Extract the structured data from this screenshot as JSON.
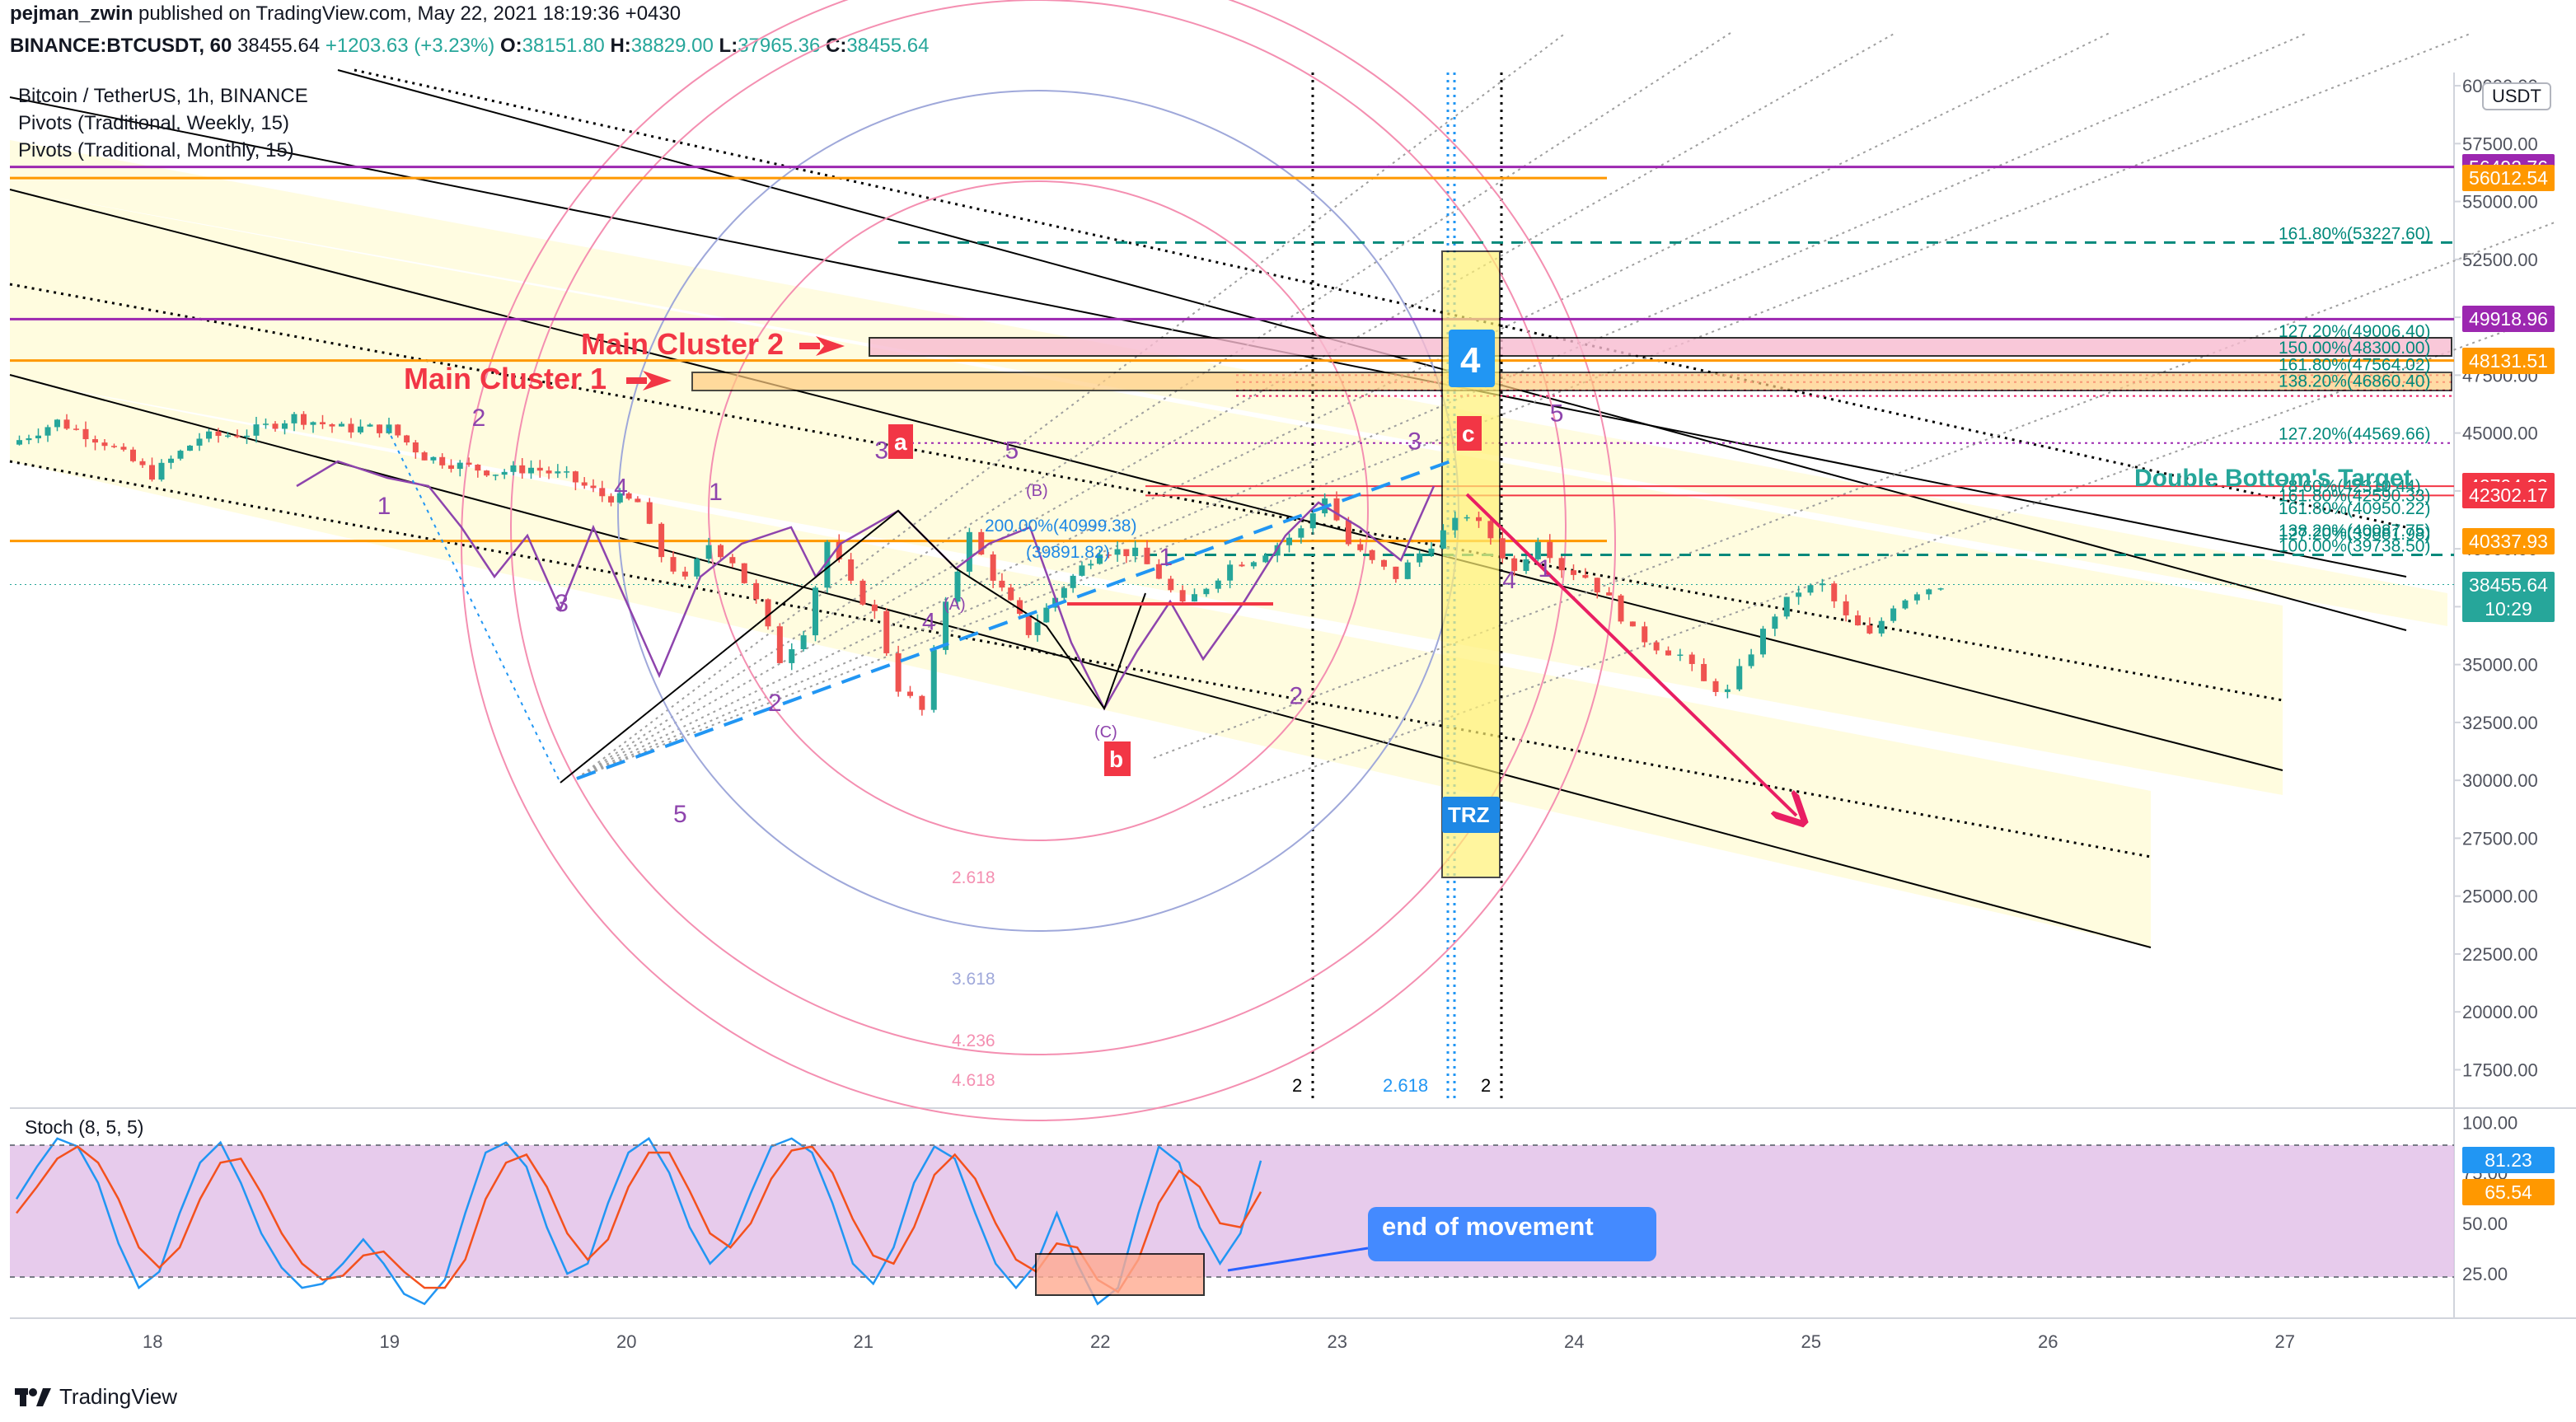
{
  "header": {
    "author": "pejman_zwin",
    "published_text": "published on TradingView.com, May 22, 2021 18:19:36 +0430",
    "symbol": "BINANCE:BTCUSDT, 60",
    "last": "38455.64",
    "change": "+1203.63 (+3.23%)",
    "o_label": "O:",
    "o": "38151.80",
    "h_label": "H:",
    "h": "38829.00",
    "l_label": "L:",
    "l": "37965.36",
    "c_label": "C:",
    "c": "38455.64"
  },
  "legend": {
    "series": "Bitcoin / TetherUS, 1h, BINANCE",
    "pivots_weekly": "Pivots (Traditional, Weekly, 15)",
    "pivots_monthly": "Pivots (Traditional, Monthly, 15)"
  },
  "currency_button": "USDT",
  "colors": {
    "purple": "#9c27b0",
    "orange": "#ff9800",
    "red": "#f23645",
    "green_text": "#26a69a",
    "blue": "#2196f3",
    "stoch_band": "#e1bee7",
    "wave_label": "#8e44ad",
    "channel_fill": "#fff9c4"
  },
  "price_tags": [
    {
      "text": "56492.76",
      "color": "#9c27b0",
      "price": 56492.76
    },
    {
      "text": "56012.54",
      "color": "#ff9800",
      "price": 56012.54
    },
    {
      "text": "49918.96",
      "color": "#9c27b0",
      "price": 49918.96
    },
    {
      "text": "48131.51",
      "color": "#ff9800",
      "price": 48131.51
    },
    {
      "text": "42704.39",
      "color": "#f23645",
      "price": 42704.39
    },
    {
      "text": "42302.17",
      "color": "#f23645",
      "price": 42302.17
    },
    {
      "text": "40337.93",
      "color": "#ff9800",
      "price": 40337.93
    },
    {
      "text": "38455.64",
      "color": "#26a69a",
      "price": 38455.64
    },
    {
      "text": "10:29",
      "color": "#26a69a",
      "price": 37400
    }
  ],
  "stoch_tags": [
    {
      "text": "81.23",
      "color": "#2196f3",
      "value": 81.23
    },
    {
      "text": "65.54",
      "color": "#ff9800",
      "value": 65.54
    }
  ],
  "annotations": {
    "main_cluster_2": "Main Cluster 2",
    "main_cluster_1": "Main Cluster 1",
    "double_bottom_target": "Double Bottom's Target",
    "trz": "TRZ",
    "wave4_box": "4",
    "end_of_movement": "end of movement",
    "label_a": "a",
    "label_b": "b",
    "label_c": "c",
    "fib_200": "200.00%(40999.38)",
    "fib_39891": "(39891.82)",
    "wave_A": "(A)",
    "wave_B": "(B)",
    "wave_C": "(C)",
    "arc_2618": "2.618",
    "arc_3618": "3.618",
    "arc_4236": "4.236",
    "arc_4618": "4.618",
    "time_2618": "2.618",
    "time_2a": "2",
    "time_2b": "2"
  },
  "fib_levels": [
    {
      "text": "161.80%(53227.60)",
      "price": 53227.6
    },
    {
      "text": "127.20%(49006.40)",
      "price": 49006.4
    },
    {
      "text": "150.00%(48300.00)",
      "price": 48300.0
    },
    {
      "text": "161.80%(47564.02)",
      "price": 47564.02
    },
    {
      "text": "138.20%(46860.40)",
      "price": 46860.4
    },
    {
      "text": "127.20%(44569.66)",
      "price": 44569.66
    },
    {
      "text": "78.60%(42310.44)",
      "price": 42310.44
    },
    {
      "text": "161.80%(42590.33)",
      "price": 41900
    },
    {
      "text": "161.80%(40950.22)",
      "price": 41350
    },
    {
      "text": "138.20%(40087.75)",
      "price": 40400
    },
    {
      "text": "127.20%(39881.98)",
      "price": 40250
    },
    {
      "text": "100.00%(39738.50)",
      "price": 39738.5
    }
  ],
  "wave_labels": [
    {
      "text": "1",
      "x": 1.55,
      "price": 41500
    },
    {
      "text": "2",
      "x": 1.95,
      "price": 45300
    },
    {
      "text": "3",
      "x": 2.3,
      "price": 37300
    },
    {
      "text": "4",
      "x": 2.55,
      "price": 42300
    },
    {
      "text": "5",
      "x": 2.8,
      "price": 28200
    },
    {
      "text": "1",
      "x": 2.95,
      "price": 42100
    },
    {
      "text": "2",
      "x": 3.2,
      "price": 33000
    },
    {
      "text": "3",
      "x": 3.65,
      "price": 43900
    },
    {
      "text": "4",
      "x": 3.85,
      "price": 36500
    },
    {
      "text": "5",
      "x": 4.2,
      "price": 43900
    },
    {
      "text": "1",
      "x": 4.85,
      "price": 39300
    },
    {
      "text": "2",
      "x": 5.4,
      "price": 33300
    },
    {
      "text": "3",
      "x": 5.9,
      "price": 44300
    },
    {
      "text": "4",
      "x": 6.3,
      "price": 38300
    },
    {
      "text": "5",
      "x": 6.5,
      "price": 45500
    },
    {
      "text": "1",
      "x": 6.45,
      "price": 38800
    }
  ],
  "stoch": {
    "title": "Stoch (8, 5, 5)",
    "ticks": [
      "100.00",
      "75.00",
      "50.00",
      "25.00"
    ],
    "upper_band": 80,
    "lower_band": 20,
    "k": [
      62,
      78,
      92,
      88,
      70,
      40,
      18,
      26,
      55,
      80,
      90,
      70,
      45,
      28,
      18,
      20,
      30,
      42,
      30,
      15,
      10,
      22,
      55,
      85,
      90,
      78,
      48,
      25,
      30,
      60,
      85,
      92,
      75,
      48,
      30,
      40,
      65,
      88,
      92,
      85,
      60,
      30,
      20,
      38,
      70,
      88,
      82,
      55,
      30,
      18,
      30,
      55,
      30,
      10,
      18,
      55,
      88,
      80,
      48,
      30,
      45,
      81
    ],
    "d": [
      55,
      68,
      82,
      88,
      80,
      62,
      38,
      28,
      38,
      62,
      80,
      82,
      65,
      45,
      30,
      22,
      24,
      34,
      36,
      26,
      18,
      18,
      32,
      62,
      80,
      84,
      68,
      45,
      32,
      42,
      68,
      85,
      85,
      66,
      45,
      38,
      50,
      72,
      86,
      88,
      75,
      52,
      34,
      30,
      48,
      74,
      84,
      72,
      50,
      32,
      26,
      40,
      38,
      22,
      16,
      32,
      60,
      76,
      68,
      50,
      48,
      65.54
    ]
  },
  "chart_data": {
    "type": "candlestick",
    "title": "Bitcoin / TetherUS, 1h, BINANCE",
    "x_ticks": [
      "18",
      "19",
      "20",
      "21",
      "22",
      "23",
      "24",
      "25",
      "26",
      "27"
    ],
    "y_ticks": [
      "60000.00",
      "57500.00",
      "55000.00",
      "52500.00",
      "50000.00",
      "47500.00",
      "45000.00",
      "42500.00",
      "40000.00",
      "37500.00",
      "35000.00",
      "32500.00",
      "30000.00",
      "27500.00",
      "25000.00",
      "22500.00",
      "20000.00",
      "17500.00"
    ],
    "y_range": [
      16200,
      60500
    ],
    "close_path": [
      {
        "d": 0.0,
        "p": 44500
      },
      {
        "d": 0.2,
        "p": 45500
      },
      {
        "d": 0.4,
        "p": 44600
      },
      {
        "d": 0.6,
        "p": 43200
      },
      {
        "d": 0.8,
        "p": 44800
      },
      {
        "d": 1.0,
        "p": 45000
      },
      {
        "d": 1.2,
        "p": 45700
      },
      {
        "d": 1.4,
        "p": 45200
      },
      {
        "d": 1.6,
        "p": 45200
      },
      {
        "d": 1.75,
        "p": 44000
      },
      {
        "d": 1.9,
        "p": 43600
      },
      {
        "d": 2.05,
        "p": 43300
      },
      {
        "d": 2.2,
        "p": 43500
      },
      {
        "d": 2.35,
        "p": 43100
      },
      {
        "d": 2.5,
        "p": 42300
      },
      {
        "d": 2.65,
        "p": 42000
      },
      {
        "d": 2.75,
        "p": 39700
      },
      {
        "d": 2.85,
        "p": 38600
      },
      {
        "d": 2.95,
        "p": 40200
      },
      {
        "d": 3.05,
        "p": 39500
      },
      {
        "d": 3.15,
        "p": 37700
      },
      {
        "d": 3.25,
        "p": 35200
      },
      {
        "d": 3.35,
        "p": 36500
      },
      {
        "d": 3.45,
        "p": 40300
      },
      {
        "d": 3.55,
        "p": 38400
      },
      {
        "d": 3.65,
        "p": 37200
      },
      {
        "d": 3.75,
        "p": 34000
      },
      {
        "d": 3.85,
        "p": 33000
      },
      {
        "d": 3.95,
        "p": 37800
      },
      {
        "d": 4.05,
        "p": 40600
      },
      {
        "d": 4.15,
        "p": 38800
      },
      {
        "d": 4.3,
        "p": 36400
      },
      {
        "d": 4.45,
        "p": 38400
      },
      {
        "d": 4.6,
        "p": 40000
      },
      {
        "d": 4.75,
        "p": 39800
      },
      {
        "d": 4.85,
        "p": 38800
      },
      {
        "d": 4.95,
        "p": 37500
      },
      {
        "d": 5.05,
        "p": 38400
      },
      {
        "d": 5.15,
        "p": 39300
      },
      {
        "d": 5.25,
        "p": 39600
      },
      {
        "d": 5.35,
        "p": 40200
      },
      {
        "d": 5.45,
        "p": 40800
      },
      {
        "d": 5.55,
        "p": 42300
      },
      {
        "d": 5.65,
        "p": 40200
      },
      {
        "d": 5.75,
        "p": 39400
      },
      {
        "d": 5.85,
        "p": 38800
      },
      {
        "d": 5.95,
        "p": 39800
      },
      {
        "d": 6.05,
        "p": 40700
      },
      {
        "d": 6.15,
        "p": 41500
      },
      {
        "d": 6.25,
        "p": 40500
      },
      {
        "d": 6.35,
        "p": 39000
      },
      {
        "d": 6.45,
        "p": 40500
      },
      {
        "d": 6.55,
        "p": 39200
      },
      {
        "d": 6.65,
        "p": 38800
      },
      {
        "d": 6.75,
        "p": 37800
      },
      {
        "d": 6.85,
        "p": 36400
      },
      {
        "d": 6.95,
        "p": 35800
      },
      {
        "d": 7.05,
        "p": 35400
      },
      {
        "d": 7.15,
        "p": 34200
      },
      {
        "d": 7.25,
        "p": 33800
      },
      {
        "d": 7.35,
        "p": 35600
      },
      {
        "d": 7.45,
        "p": 37200
      },
      {
        "d": 7.55,
        "p": 38200
      },
      {
        "d": 7.65,
        "p": 38400
      },
      {
        "d": 7.75,
        "p": 37000
      },
      {
        "d": 7.85,
        "p": 36200
      },
      {
        "d": 7.95,
        "p": 37600
      },
      {
        "d": 8.05,
        "p": 38200
      },
      {
        "d": 8.15,
        "p": 38455.64
      }
    ]
  }
}
